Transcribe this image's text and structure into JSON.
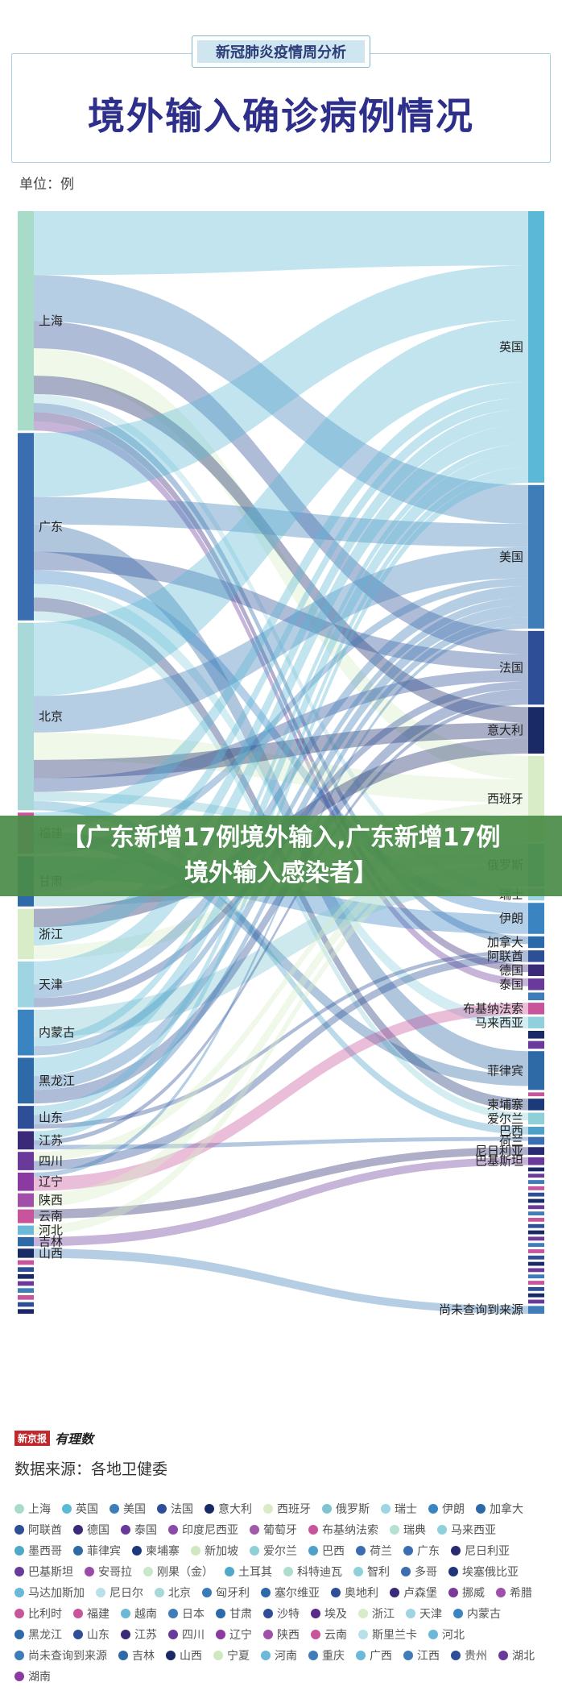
{
  "header": {
    "subtitle": "新冠肺炎疫情周分析",
    "title": "境外输入确诊病例情况",
    "unit": "单位：例"
  },
  "banner": {
    "line1": "【广东新增17例境外输入,广东新增17例",
    "line2": "境外输入感染者】"
  },
  "footer": {
    "brand_box": "新京报",
    "brand_script": "有理数",
    "source": "数据来源：各地卫健委"
  },
  "colors": {
    "英国": "#5bb8d6",
    "美国": "#3e7db8",
    "法国": "#2e4f98",
    "意大利": "#1a2a66",
    "西班牙": "#d8ecc8",
    "俄罗斯": "#7ec4cf",
    "瑞士": "#9fd4e3",
    "伊朗": "#3a84c2",
    "加拿大": "#2a6aa8",
    "阿联酋": "#2d4f95",
    "德国": "#3a2a78",
    "泰国": "#6a3a9a",
    "印度尼西亚": "#8a4aa8",
    "葡萄牙": "#a05aa8",
    "布基纳法索": "#c7559c",
    "瑞典": "#b6e0d0",
    "马来西亚": "#8fd0dc",
    "墨西哥": "#4fa8c8",
    "菲律宾": "#2e6aa6",
    "柬埔寨": "#1c3a7a",
    "新加坡": "#d0e8c0",
    "爱尔兰": "#8fd0d8",
    "巴西": "#4fa0c8",
    "荷兰": "#3a6eb0",
    "尼日利亚": "#2a2a70",
    "巴基斯坦": "#6a3a9a",
    "安哥拉": "#9a4aa8",
    "刚果（金）": "#c8e8c8",
    "土耳其": "#4fa8c8",
    "科特迪瓦": "#b0dcd0",
    "智利": "#8fd0dc",
    "多哥": "#3e6eb0",
    "埃塞俄比亚": "#1e3576",
    "马达加斯加": "#6cb8d8",
    "尼日尔": "#b8e0e8",
    "北京": "#a8d8d8",
    "匈牙利": "#3a7ab8",
    "塞尔维亚": "#2e6aa8",
    "奥地利": "#2e4f98",
    "卢森堡": "#3a2a78",
    "挪威": "#7a3a9a",
    "希腊": "#a050a8",
    "比利时": "#c8559c",
    "福建": "#c8559c",
    "越南": "#6cb8d8",
    "日本": "#3e7db8",
    "甘肃": "#2e6aa8",
    "沙特": "#2e4f98",
    "埃及": "#5a2a88",
    "浙江": "#d8ecc8",
    "天津": "#9fd4e3",
    "内蒙古": "#3a84c2",
    "黑龙江": "#2e6aa8",
    "山东": "#2e4f98",
    "江苏": "#3a2a78",
    "四川": "#6a3a9a",
    "辽宁": "#8a3aa0",
    "陕西": "#a050a8",
    "云南": "#c8559c",
    "斯里兰卡": "#b8e0e8",
    "河北": "#6cb8d8",
    "尚未查询到来源": "#3e7db8",
    "吉林": "#2e6aa8",
    "山西": "#1a2a66",
    "宁夏": "#d0e8c0",
    "河南": "#6cb8d8",
    "重庆": "#3e7db8",
    "广西": "#6cb8d8",
    "江西": "#3e7db8",
    "贵州": "#2e4f98",
    "湖北": "#6a3a9a",
    "湖南": "#8a3aa0",
    "上海": "#a8dcc8",
    "广东": "#3a6eb0"
  },
  "provinces": [
    {
      "name": "上海",
      "value": 48
    },
    {
      "name": "广东",
      "value": 41
    },
    {
      "name": "北京",
      "value": 41
    },
    {
      "name": "福建",
      "value": 9
    },
    {
      "name": "甘肃",
      "value": 11
    },
    {
      "name": "浙江",
      "value": 11
    },
    {
      "name": "天津",
      "value": 10
    },
    {
      "name": "内蒙古",
      "value": 10
    },
    {
      "name": "黑龙江",
      "value": 10
    },
    {
      "name": "山东",
      "value": 5
    },
    {
      "name": "江苏",
      "value": 4
    },
    {
      "name": "四川",
      "value": 4
    },
    {
      "name": "辽宁",
      "value": 4
    },
    {
      "name": "陕西",
      "value": 3
    },
    {
      "name": "云南",
      "value": 3
    },
    {
      "name": "河北",
      "value": 2
    },
    {
      "name": "吉林",
      "value": 2
    },
    {
      "name": "山西",
      "value": 2
    },
    {
      "name": "",
      "value": 1
    },
    {
      "name": "",
      "value": 1
    },
    {
      "name": "",
      "value": 1
    },
    {
      "name": "",
      "value": 1
    },
    {
      "name": "",
      "value": 1
    },
    {
      "name": "",
      "value": 1
    },
    {
      "name": "",
      "value": 1
    },
    {
      "name": "",
      "value": 1
    }
  ],
  "countries": [
    {
      "name": "英国",
      "value": 70
    },
    {
      "name": "美国",
      "value": 37
    },
    {
      "name": "法国",
      "value": 19
    },
    {
      "name": "意大利",
      "value": 12
    },
    {
      "name": "西班牙",
      "value": 22
    },
    {
      "name": "俄罗斯",
      "value": 11
    },
    {
      "name": "瑞士",
      "value": 3
    },
    {
      "name": "伊朗",
      "value": 8
    },
    {
      "name": "加拿大",
      "value": 3
    },
    {
      "name": "阿联酋",
      "value": 3
    },
    {
      "name": "德国",
      "value": 3
    },
    {
      "name": "泰国",
      "value": 3
    },
    {
      "name": "",
      "value": 2
    },
    {
      "name": "布基纳法索",
      "value": 3
    },
    {
      "name": "马来西亚",
      "value": 3
    },
    {
      "name": "",
      "value": 2
    },
    {
      "name": "",
      "value": 2
    },
    {
      "name": "菲律宾",
      "value": 10
    },
    {
      "name": "",
      "value": 1
    },
    {
      "name": "柬埔寨",
      "value": 3
    },
    {
      "name": "爱尔兰",
      "value": 3
    },
    {
      "name": "巴西",
      "value": 2
    },
    {
      "name": "荷兰",
      "value": 2
    },
    {
      "name": "尼日利亚",
      "value": 2
    },
    {
      "name": "巴基斯坦",
      "value": 2
    },
    {
      "name": "",
      "value": 1
    },
    {
      "name": "",
      "value": 1
    },
    {
      "name": "",
      "value": 1
    },
    {
      "name": "",
      "value": 1
    },
    {
      "name": "",
      "value": 1
    },
    {
      "name": "",
      "value": 1
    },
    {
      "name": "",
      "value": 1
    },
    {
      "name": "",
      "value": 1
    },
    {
      "name": "",
      "value": 1
    },
    {
      "name": "",
      "value": 1
    },
    {
      "name": "",
      "value": 1
    },
    {
      "name": "",
      "value": 1
    },
    {
      "name": "",
      "value": 1
    },
    {
      "name": "",
      "value": 1
    },
    {
      "name": "",
      "value": 1
    },
    {
      "name": "",
      "value": 1
    },
    {
      "name": "",
      "value": 1
    },
    {
      "name": "",
      "value": 1
    },
    {
      "name": "",
      "value": 1
    },
    {
      "name": "",
      "value": 1
    },
    {
      "name": "",
      "value": 1
    },
    {
      "name": "",
      "value": 1
    },
    {
      "name": "尚未查询到来源",
      "value": 2
    }
  ],
  "flows": [
    {
      "from": "上海",
      "to": "英国",
      "value": 14
    },
    {
      "from": "上海",
      "to": "美国",
      "value": 10
    },
    {
      "from": "上海",
      "to": "法国",
      "value": 6
    },
    {
      "from": "上海",
      "to": "西班牙",
      "value": 6
    },
    {
      "from": "上海",
      "to": "意大利",
      "value": 4
    },
    {
      "from": "上海",
      "to": "瑞士",
      "value": 2
    },
    {
      "from": "上海",
      "to": "加拿大",
      "value": 2
    },
    {
      "from": "上海",
      "to": "德国",
      "value": 2
    },
    {
      "from": "上海",
      "to": "泰国",
      "value": 2
    },
    {
      "from": "广东",
      "to": "英国",
      "value": 14
    },
    {
      "from": "广东",
      "to": "美国",
      "value": 6
    },
    {
      "from": "广东",
      "to": "菲律宾",
      "value": 6
    },
    {
      "from": "广东",
      "to": "法国",
      "value": 4
    },
    {
      "from": "广东",
      "to": "伊朗",
      "value": 3
    },
    {
      "from": "广东",
      "to": "马来西亚",
      "value": 3
    },
    {
      "from": "广东",
      "to": "柬埔寨",
      "value": 3
    },
    {
      "from": "广东",
      "to": "爱尔兰",
      "value": 2
    },
    {
      "from": "北京",
      "to": "英国",
      "value": 16
    },
    {
      "from": "北京",
      "to": "美国",
      "value": 8
    },
    {
      "from": "北京",
      "to": "西班牙",
      "value": 6
    },
    {
      "from": "北京",
      "to": "意大利",
      "value": 4
    },
    {
      "from": "北京",
      "to": "法国",
      "value": 3
    },
    {
      "from": "北京",
      "to": "俄罗斯",
      "value": 2
    },
    {
      "from": "北京",
      "to": "巴西",
      "value": 2
    },
    {
      "from": "福建",
      "to": "英国",
      "value": 4
    },
    {
      "from": "福建",
      "to": "菲律宾",
      "value": 3
    },
    {
      "from": "福建",
      "to": "美国",
      "value": 2
    },
    {
      "from": "甘肃",
      "to": "伊朗",
      "value": 5
    },
    {
      "from": "甘肃",
      "to": "英国",
      "value": 3
    },
    {
      "from": "甘肃",
      "to": "俄罗斯",
      "value": 3
    },
    {
      "from": "浙江",
      "to": "意大利",
      "value": 4
    },
    {
      "from": "浙江",
      "to": "英国",
      "value": 4
    },
    {
      "from": "浙江",
      "to": "西班牙",
      "value": 3
    },
    {
      "from": "天津",
      "to": "英国",
      "value": 5
    },
    {
      "from": "天津",
      "to": "美国",
      "value": 3
    },
    {
      "from": "天津",
      "to": "法国",
      "value": 2
    },
    {
      "from": "内蒙古",
      "to": "俄罗斯",
      "value": 6
    },
    {
      "from": "内蒙古",
      "to": "英国",
      "value": 2
    },
    {
      "from": "内蒙古",
      "to": "美国",
      "value": 2
    },
    {
      "from": "黑龙江",
      "to": "俄罗斯",
      "value": 0
    },
    {
      "from": "黑龙江",
      "to": "英国",
      "value": 4
    },
    {
      "from": "黑龙江",
      "to": "美国",
      "value": 3
    },
    {
      "from": "黑龙江",
      "to": "法国",
      "value": 3
    },
    {
      "from": "山东",
      "to": "英国",
      "value": 2
    },
    {
      "from": "山东",
      "to": "美国",
      "value": 2
    },
    {
      "from": "山东",
      "to": "阿联酋",
      "value": 1
    },
    {
      "from": "江苏",
      "to": "英国",
      "value": 2
    },
    {
      "from": "江苏",
      "to": "法国",
      "value": 1
    },
    {
      "from": "江苏",
      "to": "荷兰",
      "value": 1
    },
    {
      "from": "四川",
      "to": "西班牙",
      "value": 2
    },
    {
      "from": "四川",
      "to": "阿联酋",
      "value": 2
    },
    {
      "from": "辽宁",
      "to": "美国",
      "value": 1
    },
    {
      "from": "辽宁",
      "to": "布基纳法索",
      "value": 3
    },
    {
      "from": "陕西",
      "to": "西班牙",
      "value": 3
    },
    {
      "from": "云南",
      "to": "尼日利亚",
      "value": 2
    },
    {
      "from": "云南",
      "to": "美国",
      "value": 0
    },
    {
      "from": "河北",
      "to": "西班牙",
      "value": 2
    },
    {
      "from": "吉林",
      "to": "巴基斯坦",
      "value": 2
    },
    {
      "from": "山西",
      "to": "尚未查询到来源",
      "value": 2
    }
  ],
  "legend": [
    "上海",
    "英国",
    "美国",
    "法国",
    "意大利",
    "西班牙",
    "俄罗斯",
    "瑞士",
    "伊朗",
    "加拿大",
    "阿联酋",
    "德国",
    "泰国",
    "印度尼西亚",
    "葡萄牙",
    "布基纳法索",
    "瑞典",
    "马来西亚",
    "墨西哥",
    "菲律宾",
    "柬埔寨",
    "新加坡",
    "爱尔兰",
    "巴西",
    "荷兰",
    "广东",
    "尼日利亚",
    "巴基斯坦",
    "安哥拉",
    "刚果（金）",
    "土耳其",
    "科特迪瓦",
    "智利",
    "多哥",
    "埃塞俄比亚",
    "马达加斯加",
    "尼日尔",
    "北京",
    "匈牙利",
    "塞尔维亚",
    "奥地利",
    "卢森堡",
    "挪威",
    "希腊",
    "比利时",
    "福建",
    "越南",
    "日本",
    "甘肃",
    "沙特",
    "埃及",
    "浙江",
    "天津",
    "内蒙古",
    "黑龙江",
    "山东",
    "江苏",
    "四川",
    "辽宁",
    "陕西",
    "云南",
    "斯里兰卡",
    "河北",
    "尚未查询到来源",
    "吉林",
    "山西",
    "宁夏",
    "河南",
    "重庆",
    "广西",
    "江西",
    "贵州",
    "湖北",
    "湖南"
  ]
}
